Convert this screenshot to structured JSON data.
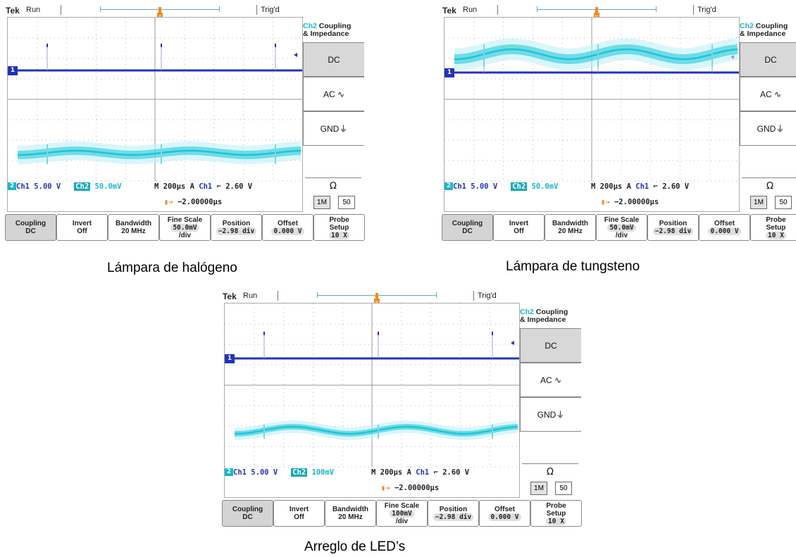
{
  "scopes": [
    {
      "brand": "Tek",
      "state": "Run",
      "trigger_status": "Trig'd",
      "menu_header_ch": "Ch2",
      "menu_header_1": "Coupling",
      "menu_header_2": "& Impedance",
      "side_buttons": [
        "DC",
        "AC ∿",
        "GND⏚"
      ],
      "ohm_label": "Ω",
      "impedance_options": [
        "1M",
        "50"
      ],
      "readout": {
        "ch1": "Ch1",
        "ch1_scale": "5.00 V",
        "ch2": "Ch2",
        "ch2_scale": "50.0mV",
        "timebase": "M 200µs",
        "trig_mode": "A",
        "trig_src": "Ch1",
        "trig_slope": "⌐",
        "trig_level": "2.60 V",
        "delay": "−2.00000µs"
      },
      "bottom": [
        {
          "l1": "Coupling",
          "l2": "DC"
        },
        {
          "l1": "Invert",
          "l2": "Off"
        },
        {
          "l1": "Bandwidth",
          "l2": "20 MHz"
        },
        {
          "l1": "Fine Scale",
          "l2": "50.0mV",
          "l3": "/div"
        },
        {
          "l1": "Position",
          "l2": "−2.98 div"
        },
        {
          "l1": "Offset",
          "l2": "0.000 V"
        },
        {
          "l1": "Probe",
          "l2": "Setup",
          "l3": "10 X"
        }
      ],
      "caption": "Lámpara de halógeno"
    },
    {
      "brand": "Tek",
      "state": "Run",
      "trigger_status": "Trig'd",
      "menu_header_ch": "Ch2",
      "menu_header_1": "Coupling",
      "menu_header_2": "& Impedance",
      "side_buttons": [
        "DC",
        "AC ∿",
        "GND⏚"
      ],
      "ohm_label": "Ω",
      "impedance_options": [
        "1M",
        "50"
      ],
      "readout": {
        "ch1": "Ch1",
        "ch1_scale": "5.00 V",
        "ch2": "Ch2",
        "ch2_scale": "50.0mV",
        "timebase": "M 200µs",
        "trig_mode": "A",
        "trig_src": "Ch1",
        "trig_slope": "⌐",
        "trig_level": "2.60 V",
        "delay": "−2.00000µs"
      },
      "bottom": [
        {
          "l1": "Coupling",
          "l2": "DC"
        },
        {
          "l1": "Invert",
          "l2": "Off"
        },
        {
          "l1": "Bandwidth",
          "l2": "20 MHz"
        },
        {
          "l1": "Fine Scale",
          "l2": "50.0mV",
          "l3": "/div"
        },
        {
          "l1": "Position",
          "l2": "−2.98 div"
        },
        {
          "l1": "Offset",
          "l2": "0.000 V"
        },
        {
          "l1": "Probe",
          "l2": "Setup",
          "l3": "10 X"
        }
      ],
      "caption": "Lámpara de tungsteno"
    },
    {
      "brand": "Tek",
      "state": "Run",
      "trigger_status": "Trig'd",
      "menu_header_ch": "Ch2",
      "menu_header_1": "Coupling",
      "menu_header_2": "& Impedance",
      "side_buttons": [
        "DC",
        "AC ∿",
        "GND⏚"
      ],
      "ohm_label": "Ω",
      "impedance_options": [
        "1M",
        "50"
      ],
      "readout": {
        "ch1": "Ch1",
        "ch1_scale": "5.00 V",
        "ch2": "Ch2",
        "ch2_scale": "100mV",
        "timebase": "M 200µs",
        "trig_mode": "A",
        "trig_src": "Ch1",
        "trig_slope": "⌐",
        "trig_level": "2.60 V",
        "delay": "−2.00000µs"
      },
      "bottom": [
        {
          "l1": "Coupling",
          "l2": "DC"
        },
        {
          "l1": "Invert",
          "l2": "Off"
        },
        {
          "l1": "Bandwidth",
          "l2": "20 MHz"
        },
        {
          "l1": "Fine Scale",
          "l2": "100mV",
          "l3": "/div"
        },
        {
          "l1": "Position",
          "l2": "−2.98 div"
        },
        {
          "l1": "Offset",
          "l2": "0.000 V"
        },
        {
          "l1": "Probe",
          "l2": "Setup",
          "l3": "10 X"
        }
      ],
      "caption": "Arreglo de LED’s"
    }
  ],
  "colors": {
    "ch1": "#2233bb",
    "ch2": "#19c7d7",
    "trigger": "#f08a1c",
    "grid": "#9a9a9a"
  }
}
